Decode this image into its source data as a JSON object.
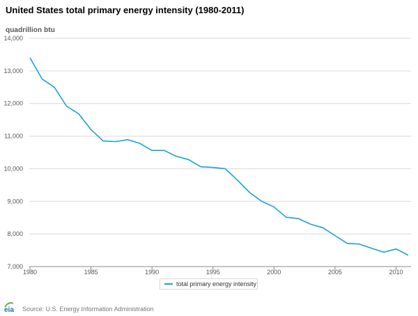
{
  "title": "United States total primary energy intensity (1980-2011)",
  "unit_label": "quadrillion btu",
  "source": "Source: U.S. Energy Information Administration",
  "logo_text": "eia",
  "colors": {
    "series": "#1a9fd9",
    "grid": "#d9d9d9",
    "axis": "#999999",
    "logo_green": "#6ab04c",
    "logo_blue": "#1a6fb5"
  },
  "chart_data": {
    "type": "line",
    "title": "United States total primary energy intensity (1980-2011)",
    "ylabel": "quadrillion btu",
    "xlabel": "",
    "ylim": [
      7000,
      14000
    ],
    "xlim": [
      1980,
      2011
    ],
    "yticks": [
      7000,
      8000,
      9000,
      10000,
      11000,
      12000,
      13000,
      14000
    ],
    "ytick_labels": [
      "7,000",
      "8,000",
      "9,000",
      "10,000",
      "11,000",
      "12,000",
      "13,000",
      "14,000"
    ],
    "xticks": [
      1980,
      1985,
      1990,
      1995,
      2000,
      2005,
      2010
    ],
    "xtick_labels": [
      "1980",
      "1985",
      "1990",
      "1995",
      "2000",
      "2005",
      "2010"
    ],
    "grid": true,
    "legend_position": "bottom-center",
    "series": [
      {
        "name": "total primary energy intensity",
        "x": [
          1980,
          1981,
          1982,
          1983,
          1984,
          1985,
          1986,
          1987,
          1988,
          1989,
          1990,
          1991,
          1992,
          1993,
          1994,
          1995,
          1996,
          1997,
          1998,
          1999,
          2000,
          2001,
          2002,
          2003,
          2004,
          2005,
          2006,
          2007,
          2008,
          2009,
          2010,
          2011
        ],
        "values": [
          13400,
          12750,
          12500,
          11920,
          11680,
          11200,
          10850,
          10830,
          10890,
          10780,
          10560,
          10560,
          10380,
          10280,
          10060,
          10040,
          10000,
          9650,
          9270,
          9000,
          8830,
          8510,
          8470,
          8300,
          8190,
          7950,
          7710,
          7690,
          7560,
          7440,
          7540,
          7350
        ]
      }
    ]
  }
}
